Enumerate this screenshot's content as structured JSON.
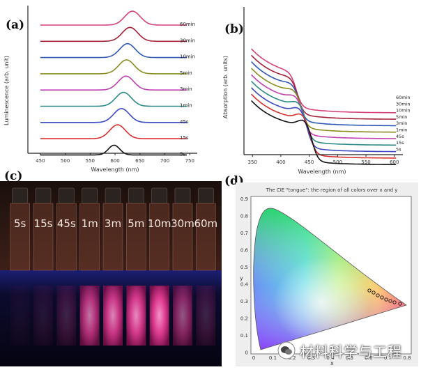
{
  "labels": {
    "a": "(a)",
    "b": "(b)",
    "c": "(c)",
    "d": "(d)"
  },
  "times": [
    "60min",
    "30min",
    "10min",
    "5min",
    "3min",
    "1min",
    "45s",
    "15s",
    "5s"
  ],
  "panel_a": {
    "type": "line",
    "xlabel": "Wavelength (nm)",
    "ylabel": "Luminescence (arb. unit)",
    "xticks": [
      "450",
      "500",
      "550",
      "600",
      "650",
      "700",
      "750"
    ],
    "colors": [
      "#d6407a",
      "#a32036",
      "#2f57b5",
      "#8a8c1f",
      "#c23fb4",
      "#2a8a8a",
      "#3a49c4",
      "#d9302f",
      "#111111"
    ],
    "peaks_nm": [
      635,
      630,
      625,
      623,
      622,
      617,
      613,
      605,
      598
    ]
  },
  "panel_b": {
    "type": "line",
    "xlabel": "Wavelength (nm)",
    "ylabel": "Absorption (arb. units)",
    "xticks": [
      "350",
      "400",
      "450",
      "500",
      "550",
      "600"
    ],
    "colors": [
      "#d6407a",
      "#a32036",
      "#2f57b5",
      "#8a8c1f",
      "#c23fb4",
      "#2a8a8a",
      "#3a49c4",
      "#d9302f",
      "#111111"
    ],
    "edges_nm": [
      427,
      430,
      433,
      437,
      440,
      445,
      447,
      452,
      456
    ]
  },
  "panel_c": {
    "vial_labels": [
      "5s",
      "15s",
      "45s",
      "1m",
      "3m",
      "5m",
      "10m",
      "30m",
      "60m"
    ],
    "glow": [
      0.05,
      0.1,
      0.2,
      0.75,
      0.85,
      0.9,
      0.95,
      0.55,
      0.2
    ]
  },
  "panel_d": {
    "title": "The CIE \"tongue\": the region of all colors over x and y",
    "yaxis_label": "y",
    "xaxis_label": "x",
    "yticks": [
      "0.9",
      "0.8",
      "0.7",
      "0.6",
      "0.5",
      "0.4",
      "0.3",
      "0.2",
      "0.1",
      "0"
    ],
    "xticks": [
      "0",
      "0.1",
      "0.2",
      "0.3",
      "0.4",
      "0.5",
      "0.6",
      "0.7",
      "0.8"
    ]
  },
  "watermark": "材料科学与工程"
}
